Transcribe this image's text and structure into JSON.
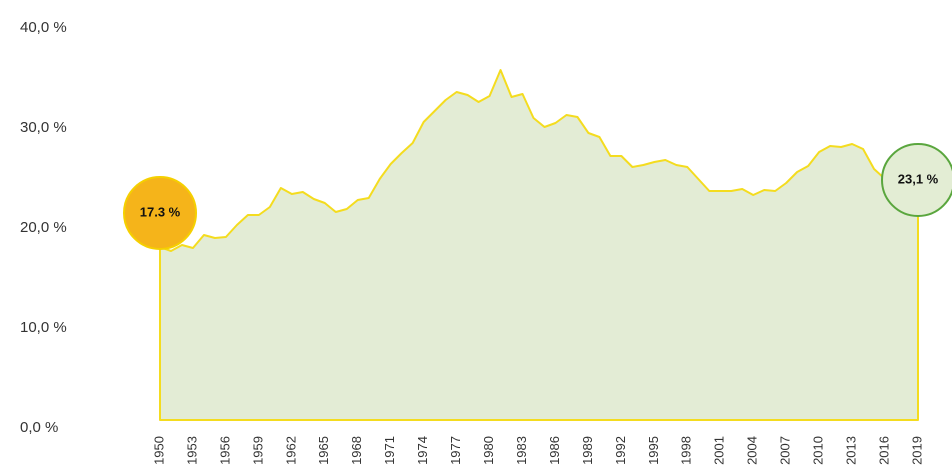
{
  "chart_data": {
    "type": "area",
    "x": [
      1950,
      1951,
      1952,
      1953,
      1954,
      1955,
      1956,
      1957,
      1958,
      1959,
      1960,
      1961,
      1962,
      1963,
      1964,
      1965,
      1966,
      1967,
      1968,
      1969,
      1970,
      1971,
      1972,
      1973,
      1974,
      1975,
      1976,
      1977,
      1978,
      1979,
      1980,
      1981,
      1982,
      1983,
      1984,
      1985,
      1986,
      1987,
      1988,
      1989,
      1990,
      1991,
      1992,
      1993,
      1994,
      1995,
      1996,
      1997,
      1998,
      1999,
      2000,
      2001,
      2002,
      2003,
      2004,
      2005,
      2006,
      2007,
      2008,
      2009,
      2010,
      2011,
      2012,
      2013,
      2014,
      2015,
      2016,
      2017,
      2018,
      2019
    ],
    "values": [
      17.3,
      16.9,
      17.5,
      17.2,
      18.5,
      18.2,
      18.3,
      19.5,
      20.5,
      20.5,
      21.3,
      23.2,
      22.6,
      22.8,
      22.1,
      21.7,
      20.8,
      21.1,
      22.0,
      22.2,
      24.1,
      25.6,
      26.7,
      27.7,
      29.8,
      30.9,
      32.0,
      32.8,
      32.5,
      31.8,
      32.4,
      35.0,
      32.3,
      32.6,
      30.2,
      29.3,
      29.7,
      30.5,
      30.3,
      28.7,
      28.3,
      26.4,
      26.4,
      25.3,
      25.5,
      25.8,
      26.0,
      25.5,
      25.3,
      24.1,
      22.9,
      22.9,
      22.9,
      23.1,
      22.5,
      23.0,
      22.9,
      23.7,
      24.8,
      25.4,
      26.8,
      27.4,
      27.3,
      27.6,
      27.1,
      25.1,
      24.1,
      23.8,
      23.5,
      23.1
    ],
    "color": "#e3ecd5",
    "line_color": "#f4dc1f",
    "xlim": [
      1950,
      2019
    ],
    "xticks": [
      1950,
      1953,
      1956,
      1959,
      1962,
      1965,
      1968,
      1971,
      1974,
      1977,
      1980,
      1983,
      1986,
      1989,
      1992,
      1995,
      1998,
      2001,
      2004,
      2007,
      2010,
      2013,
      2016,
      2019
    ],
    "ylim": [
      0,
      40
    ],
    "yticks": [
      {
        "value": 0,
        "label": "0,0 %"
      },
      {
        "value": 10,
        "label": "10,0 %"
      },
      {
        "value": 20,
        "label": "20,0 %"
      },
      {
        "value": 30,
        "label": "30,0 %"
      },
      {
        "value": 40,
        "label": "40,0 %"
      }
    ],
    "annotations": [
      "17.3 %",
      "23,1 %"
    ]
  }
}
